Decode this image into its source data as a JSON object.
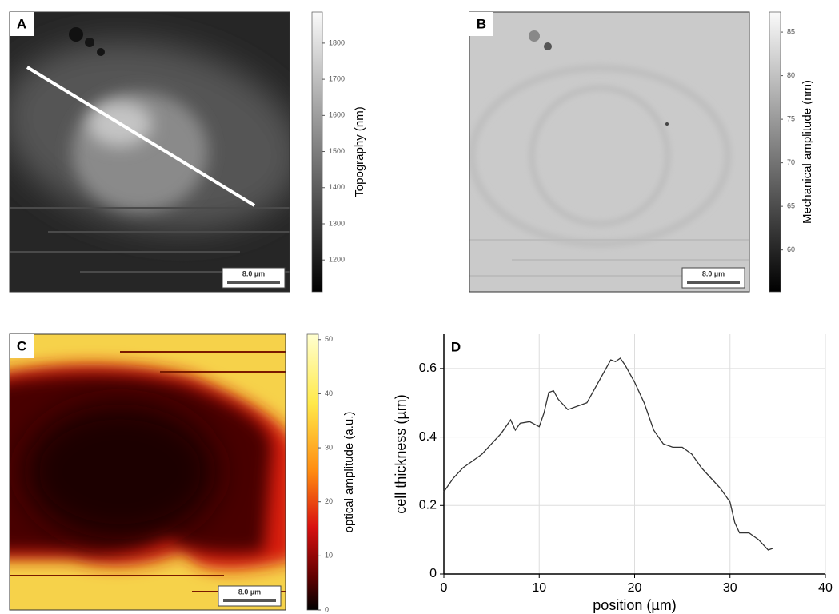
{
  "chart_data": [
    {
      "type": "heatmap",
      "panel": "A",
      "colormap": "gray",
      "colorbar_label": "Topography (nm)",
      "clim": [
        1112,
        1886
      ],
      "cticks": [
        1200,
        1300,
        1400,
        1500,
        1600,
        1700,
        1800
      ],
      "scale_bar": "8.0 µm"
    },
    {
      "type": "heatmap",
      "panel": "B",
      "colormap": "gray",
      "colorbar_label": "Mechanical amplitude (nm)",
      "clim": [
        55.2,
        87.3
      ],
      "cticks": [
        60,
        65,
        70,
        75,
        80,
        85
      ],
      "scale_bar": "8.0 µm"
    },
    {
      "type": "heatmap",
      "panel": "C",
      "colormap": "hot",
      "colorbar_label": "optical amplitude (a.u.)",
      "clim": [
        0,
        51
      ],
      "cticks": [
        0,
        10,
        20,
        30,
        40,
        50
      ],
      "scale_bar": "8.0 µm"
    },
    {
      "type": "line",
      "panel": "D",
      "xlabel": "position (µm)",
      "ylabel": "cell thickness (µm)",
      "color": "#333333",
      "grid": true,
      "x": [
        0,
        1,
        2,
        3,
        4,
        5,
        6,
        7,
        7.5,
        8,
        9,
        10,
        10.5,
        11,
        11.5,
        12,
        13,
        14,
        15,
        16,
        17,
        17.5,
        18,
        18.5,
        19,
        20,
        21,
        22,
        23,
        24,
        25,
        26,
        27,
        28,
        29,
        30,
        30.5,
        31,
        32,
        33,
        34,
        34.5
      ],
      "values": [
        0.24,
        0.28,
        0.31,
        0.33,
        0.35,
        0.38,
        0.41,
        0.45,
        0.42,
        0.44,
        0.445,
        0.43,
        0.47,
        0.53,
        0.535,
        0.51,
        0.48,
        0.49,
        0.5,
        0.55,
        0.6,
        0.625,
        0.62,
        0.63,
        0.61,
        0.56,
        0.5,
        0.42,
        0.38,
        0.37,
        0.37,
        0.35,
        0.31,
        0.28,
        0.25,
        0.21,
        0.15,
        0.12,
        0.12,
        0.1,
        0.07,
        0.075
      ],
      "xlim": [
        0,
        40
      ],
      "xticks": [
        0,
        10,
        20,
        30,
        40
      ],
      "ylim": [
        0,
        0.7
      ],
      "yticks": [
        0,
        0.2,
        0.4,
        0.6
      ]
    }
  ]
}
